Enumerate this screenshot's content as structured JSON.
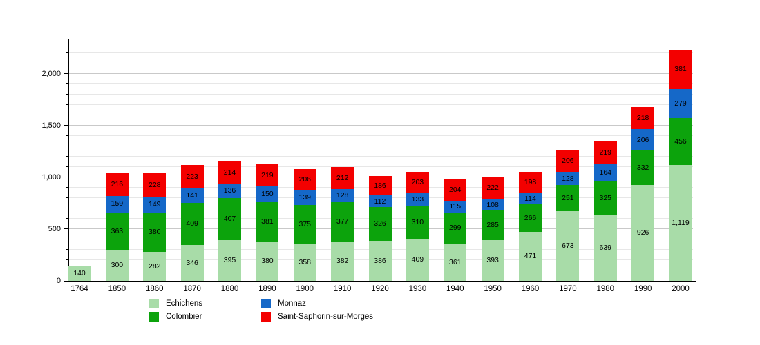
{
  "chart_data": {
    "type": "bar",
    "stacked": true,
    "title": "",
    "xlabel": "",
    "ylabel": "",
    "categories": [
      "1764",
      "1850",
      "1860",
      "1870",
      "1880",
      "1890",
      "1900",
      "1910",
      "1920",
      "1930",
      "1940",
      "1950",
      "1960",
      "1970",
      "1980",
      "1990",
      "2000"
    ],
    "series": [
      {
        "name": "Echichens",
        "color": "#a8dca8",
        "values": [
          140,
          300,
          282,
          346,
          395,
          380,
          358,
          382,
          386,
          409,
          361,
          393,
          471,
          673,
          639,
          926,
          1119
        ]
      },
      {
        "name": "Colombier",
        "color": "#0ca30c",
        "values": [
          0,
          363,
          380,
          409,
          407,
          381,
          375,
          377,
          326,
          310,
          299,
          285,
          266,
          251,
          325,
          332,
          456
        ]
      },
      {
        "name": "Monnaz",
        "color": "#1568c8",
        "values": [
          0,
          159,
          149,
          141,
          136,
          150,
          139,
          128,
          112,
          133,
          115,
          108,
          114,
          128,
          164,
          206,
          279
        ]
      },
      {
        "name": "Saint-Saphorin-sur-Morges",
        "color": "#f30000",
        "values": [
          0,
          216,
          228,
          223,
          214,
          219,
          206,
          212,
          186,
          203,
          204,
          222,
          198,
          206,
          219,
          218,
          381
        ]
      }
    ],
    "ylim": [
      0,
      2333
    ],
    "y_ticks": [
      0,
      500,
      1000,
      1500,
      2000
    ],
    "grid_step": 100,
    "grid": true,
    "legend_position": "bottom",
    "legend_columns": [
      [
        "Echichens",
        "Colombier"
      ],
      [
        "Monnaz",
        "Saint-Saphorin-sur-Morges"
      ]
    ],
    "value_labels": true,
    "axis_color": "#000000",
    "background": "#ffffff"
  }
}
